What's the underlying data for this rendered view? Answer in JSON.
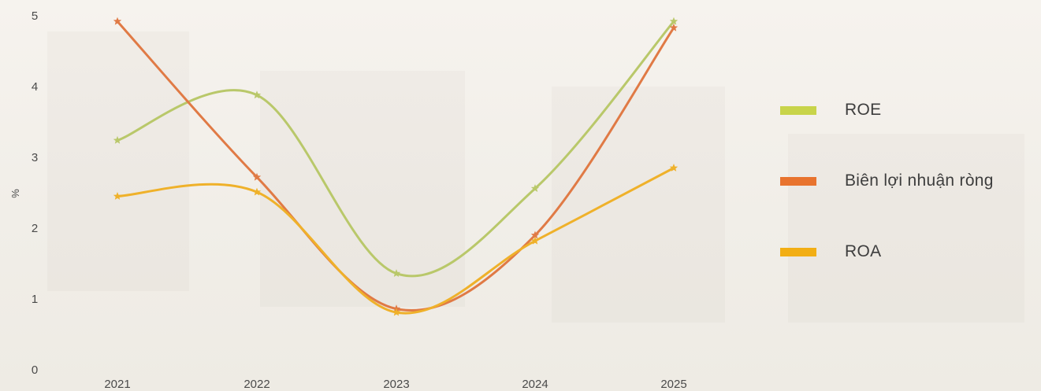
{
  "chart_data": {
    "type": "line",
    "categories": [
      "2021",
      "2022",
      "2023",
      "2024",
      "2025"
    ],
    "ylabel": "%",
    "ylim": [
      0,
      5
    ],
    "yticks": [
      "0",
      "1",
      "2",
      "3",
      "4",
      "5"
    ],
    "smooth": true,
    "marker": "star",
    "grid": false,
    "legend_position": "right",
    "series": [
      {
        "key": "roe",
        "name": "ROE",
        "color": "#c8d44a",
        "line_color": "#b9c86a",
        "values": [
          3.24,
          3.88,
          1.36,
          2.56,
          4.92
        ]
      },
      {
        "key": "net_margin",
        "name": "Biên lợi nhuận ròng",
        "color": "#e8732e",
        "line_color": "#e07a45",
        "values": [
          4.92,
          2.72,
          0.86,
          1.9,
          4.83
        ]
      },
      {
        "key": "roa",
        "name": "ROA",
        "color": "#f2ae14",
        "line_color": "#efb12a",
        "values": [
          2.45,
          2.51,
          0.81,
          1.82,
          2.85
        ]
      }
    ]
  }
}
